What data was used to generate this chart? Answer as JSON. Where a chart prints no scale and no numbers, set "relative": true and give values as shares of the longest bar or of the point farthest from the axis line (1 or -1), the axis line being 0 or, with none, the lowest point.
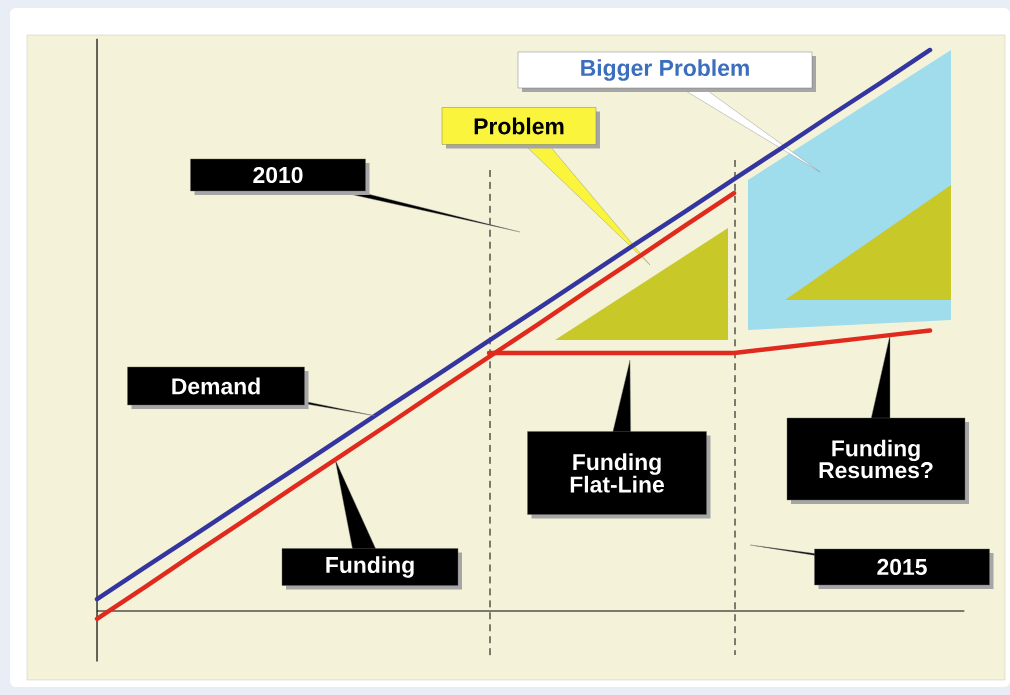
{
  "chart_data": {
    "type": "line",
    "relative": true,
    "line_style": "solid",
    "categories": [
      null,
      null,
      null,
      null,
      null,
      null,
      null,
      null,
      null,
      null,
      null,
      null,
      null,
      null,
      null,
      null,
      null,
      null
    ],
    "series": [
      {
        "name": "Demand",
        "color": "#3535a0",
        "values": [
          0.021,
          0.079,
          0.136,
          0.194,
          0.251,
          0.309,
          0.367,
          0.424,
          0.482,
          0.539,
          0.597,
          0.655,
          0.712,
          0.77,
          0.827,
          0.885,
          0.942,
          1.0
        ]
      },
      {
        "name": "Funding",
        "color": "#e02a1e",
        "values": [
          -0.014,
          0.044,
          0.103,
          0.161,
          0.22,
          0.278,
          0.336,
          0.395,
          0.453,
          0.511,
          0.57,
          0.628,
          0.687,
          0.745,
          null,
          null,
          null,
          null
        ]
      },
      {
        "color": "#e02a1e",
        "values": [
          null,
          null,
          null,
          null,
          null,
          null,
          null,
          null,
          0.46,
          0.46,
          0.46,
          0.46,
          0.46,
          0.46,
          0.47,
          0.48,
          0.49,
          0.5
        ]
      }
    ],
    "annotations": [
      "Problem",
      "Bigger Problem",
      "2010",
      "2015",
      "Funding Flat-Line",
      "Funding Resumes?"
    ]
  }
}
